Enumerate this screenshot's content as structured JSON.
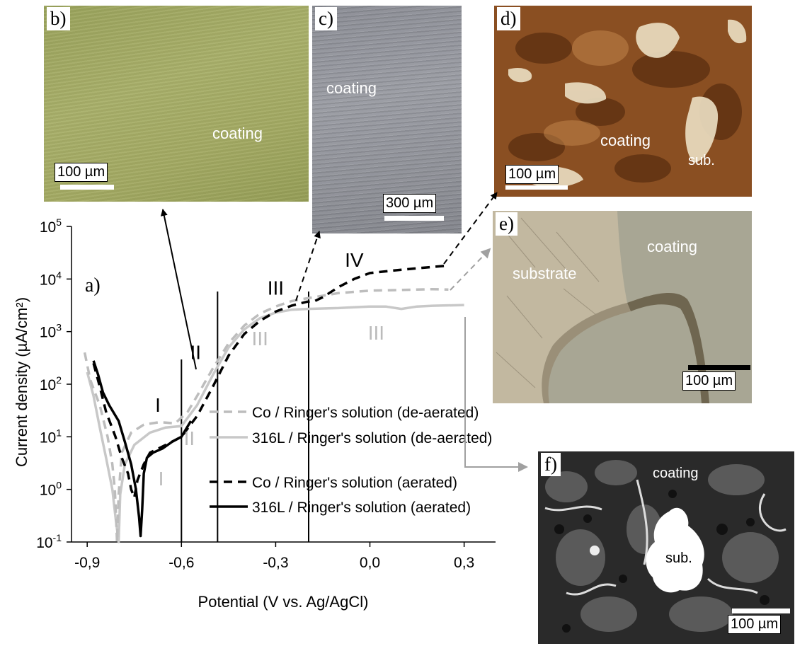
{
  "figure": {
    "panels": [
      {
        "id": "b",
        "label": "b)",
        "texts": [
          "coating"
        ],
        "scale_bar": "100 µm"
      },
      {
        "id": "c",
        "label": "c)",
        "texts": [
          "coating"
        ],
        "scale_bar": "300 µm"
      },
      {
        "id": "d",
        "label": "d)",
        "texts": [
          "coating",
          "sub."
        ],
        "scale_bar": "100 µm"
      },
      {
        "id": "e",
        "label": "e)",
        "texts": [
          "coating",
          "substrate"
        ],
        "scale_bar": "100 µm"
      },
      {
        "id": "f",
        "label": "f)",
        "texts": [
          "coating",
          "sub."
        ],
        "scale_bar": "100 µm"
      }
    ]
  },
  "chart_data": {
    "type": "line",
    "panel_label": "a)",
    "xlabel": "Potential (V vs. Ag/AgCl)",
    "ylabel": "Current density (µA/cm²)",
    "xlim": [
      -0.95,
      0.4
    ],
    "ylim": [
      0.1,
      100000
    ],
    "y_scale": "log",
    "x_ticks": [
      "-0,9",
      "-0,6",
      "-0,3",
      "0,0",
      "0,3"
    ],
    "x_tick_values": [
      -0.9,
      -0.6,
      -0.3,
      0.0,
      0.3
    ],
    "y_tick_values": [
      0.1,
      1,
      10,
      100,
      1000,
      10000,
      100000
    ],
    "y_ticks": [
      {
        "base": "10",
        "exp": "-1"
      },
      {
        "base": "10",
        "exp": "0"
      },
      {
        "base": "10",
        "exp": "1"
      },
      {
        "base": "10",
        "exp": "2"
      },
      {
        "base": "10",
        "exp": "3"
      },
      {
        "base": "10",
        "exp": "4"
      },
      {
        "base": "10",
        "exp": "5"
      }
    ],
    "legend_position": "center-right",
    "series": [
      {
        "name": "Co / Ringer's solution (de-aerated)",
        "color": "#bdbdbd",
        "style": "dashed",
        "points": [
          [
            -0.908,
            400
          ],
          [
            -0.89,
            120
          ],
          [
            -0.86,
            40
          ],
          [
            -0.835,
            10
          ],
          [
            -0.82,
            3
          ],
          [
            -0.812,
            1
          ],
          [
            -0.808,
            0.3
          ],
          [
            -0.805,
            0.1
          ],
          [
            -0.8,
            0.8
          ],
          [
            -0.79,
            5
          ],
          [
            -0.76,
            12
          ],
          [
            -0.72,
            17
          ],
          [
            -0.67,
            19
          ],
          [
            -0.62,
            18
          ],
          [
            -0.58,
            30
          ],
          [
            -0.55,
            60
          ],
          [
            -0.5,
            200
          ],
          [
            -0.45,
            600
          ],
          [
            -0.4,
            1300
          ],
          [
            -0.35,
            2200
          ],
          [
            -0.3,
            3000
          ],
          [
            -0.25,
            3800
          ],
          [
            -0.2,
            4300
          ],
          [
            -0.15,
            4800
          ],
          [
            -0.1,
            5400
          ],
          [
            0.0,
            6000
          ],
          [
            0.1,
            6200
          ],
          [
            0.2,
            6400
          ],
          [
            0.25,
            6300
          ]
        ]
      },
      {
        "name": "316L / Ringer's solution (de-aerated)",
        "color": "#c8c8c8",
        "style": "solid",
        "points": [
          [
            -0.9,
            170
          ],
          [
            -0.88,
            60
          ],
          [
            -0.86,
            15
          ],
          [
            -0.84,
            4
          ],
          [
            -0.82,
            1
          ],
          [
            -0.81,
            0.3
          ],
          [
            -0.8,
            0.1
          ],
          [
            -0.795,
            0.8
          ],
          [
            -0.78,
            3
          ],
          [
            -0.75,
            7
          ],
          [
            -0.7,
            12
          ],
          [
            -0.65,
            15
          ],
          [
            -0.6,
            16
          ],
          [
            -0.55,
            40
          ],
          [
            -0.5,
            150
          ],
          [
            -0.45,
            500
          ],
          [
            -0.4,
            1100
          ],
          [
            -0.35,
            1800
          ],
          [
            -0.3,
            2300
          ],
          [
            -0.25,
            2600
          ],
          [
            -0.2,
            2700
          ],
          [
            -0.15,
            2750
          ],
          [
            -0.1,
            2800
          ],
          [
            -0.05,
            2900
          ],
          [
            0.0,
            3000
          ],
          [
            0.05,
            3000
          ],
          [
            0.1,
            2700
          ],
          [
            0.15,
            3000
          ],
          [
            0.2,
            3100
          ],
          [
            0.3,
            3200
          ]
        ]
      },
      {
        "name": "Co / Ringer's solution (aerated)",
        "color": "#000000",
        "style": "dashed",
        "points": [
          [
            -0.88,
            250
          ],
          [
            -0.86,
            90
          ],
          [
            -0.84,
            30
          ],
          [
            -0.81,
            10
          ],
          [
            -0.79,
            4
          ],
          [
            -0.77,
            2
          ],
          [
            -0.76,
            1
          ],
          [
            -0.75,
            0.7
          ],
          [
            -0.74,
            1.5
          ],
          [
            -0.72,
            3
          ],
          [
            -0.7,
            5
          ],
          [
            -0.65,
            7
          ],
          [
            -0.6,
            10
          ],
          [
            -0.55,
            25
          ],
          [
            -0.5,
            90
          ],
          [
            -0.45,
            350
          ],
          [
            -0.4,
            900
          ],
          [
            -0.35,
            1600
          ],
          [
            -0.3,
            2400
          ],
          [
            -0.25,
            3100
          ],
          [
            -0.2,
            3700
          ],
          [
            -0.18,
            3700
          ],
          [
            -0.15,
            4500
          ],
          [
            -0.1,
            7000
          ],
          [
            -0.05,
            10000
          ],
          [
            0.0,
            13000
          ],
          [
            0.1,
            15000
          ],
          [
            0.2,
            17000
          ],
          [
            0.25,
            18000
          ]
        ]
      },
      {
        "name": "316L / Ringer's solution (aerated)",
        "color": "#000000",
        "style": "solid",
        "points": [
          [
            -0.88,
            280
          ],
          [
            -0.865,
            150
          ],
          [
            -0.85,
            70
          ],
          [
            -0.83,
            40
          ],
          [
            -0.8,
            20
          ],
          [
            -0.78,
            8
          ],
          [
            -0.76,
            3
          ],
          [
            -0.745,
            1
          ],
          [
            -0.735,
            0.3
          ],
          [
            -0.73,
            0.13
          ],
          [
            -0.725,
            0.4
          ],
          [
            -0.72,
            2
          ],
          [
            -0.71,
            4
          ],
          [
            -0.69,
            5
          ],
          [
            -0.66,
            6
          ],
          [
            -0.63,
            8
          ],
          [
            -0.6,
            10
          ],
          [
            -0.57,
            20
          ]
        ]
      }
    ],
    "region_labels": [
      {
        "text": "I",
        "color": "#000000",
        "x": -0.675,
        "y": 30
      },
      {
        "text": "II",
        "color": "#000000",
        "x": -0.555,
        "y": 300
      },
      {
        "text": "III",
        "color": "#000000",
        "x": -0.3,
        "y": 5000
      },
      {
        "text": "IV",
        "color": "#000000",
        "x": -0.05,
        "y": 17000
      },
      {
        "text": "I",
        "color": "#bbbbbb",
        "x": -0.665,
        "y": 1.2
      },
      {
        "text": "II",
        "color": "#bbbbbb",
        "x": -0.575,
        "y": 7
      },
      {
        "text": "III",
        "color": "#bbbbbb",
        "x": -0.35,
        "y": 550
      },
      {
        "text": "III",
        "color": "#bbbbbb",
        "x": 0.02,
        "y": 700
      }
    ],
    "region_boundaries": [
      -0.6,
      -0.485,
      -0.195
    ]
  }
}
